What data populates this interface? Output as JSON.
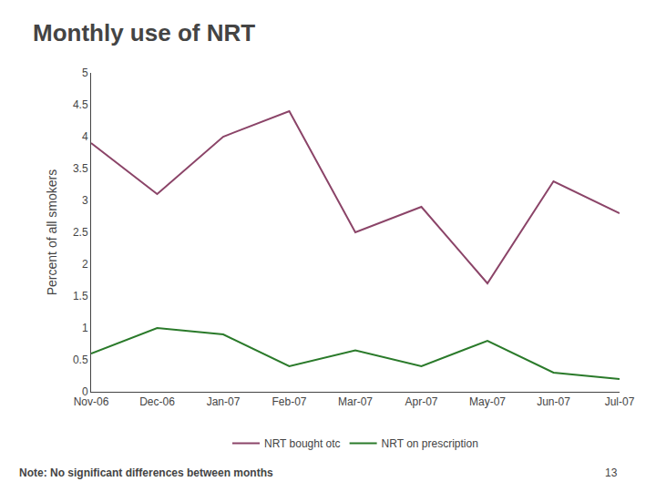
{
  "chart_data": {
    "type": "line",
    "title": "Monthly use of NRT",
    "ylabel": "Percent of all smokers",
    "categories": [
      "Nov-06",
      "Dec-06",
      "Jan-07",
      "Feb-07",
      "Mar-07",
      "Apr-07",
      "May-07",
      "Jun-07",
      "Jul-07"
    ],
    "series": [
      {
        "name": "NRT bought otc",
        "color": "#8B4468",
        "values": [
          3.9,
          3.1,
          4.0,
          4.4,
          2.5,
          2.9,
          1.7,
          3.3,
          2.8
        ]
      },
      {
        "name": "NRT on prescription",
        "color": "#2A7A2A",
        "values": [
          0.6,
          1.0,
          0.9,
          0.4,
          0.65,
          0.4,
          0.8,
          0.3,
          0.2
        ]
      }
    ],
    "ylim": [
      0,
      5
    ],
    "yticks": [
      0,
      0.5,
      1,
      1.5,
      2,
      2.5,
      3,
      3.5,
      4,
      4.5,
      5
    ],
    "grid": false,
    "legend": "bottom",
    "annotations": [
      "Note: No significant differences between months",
      "13"
    ]
  }
}
